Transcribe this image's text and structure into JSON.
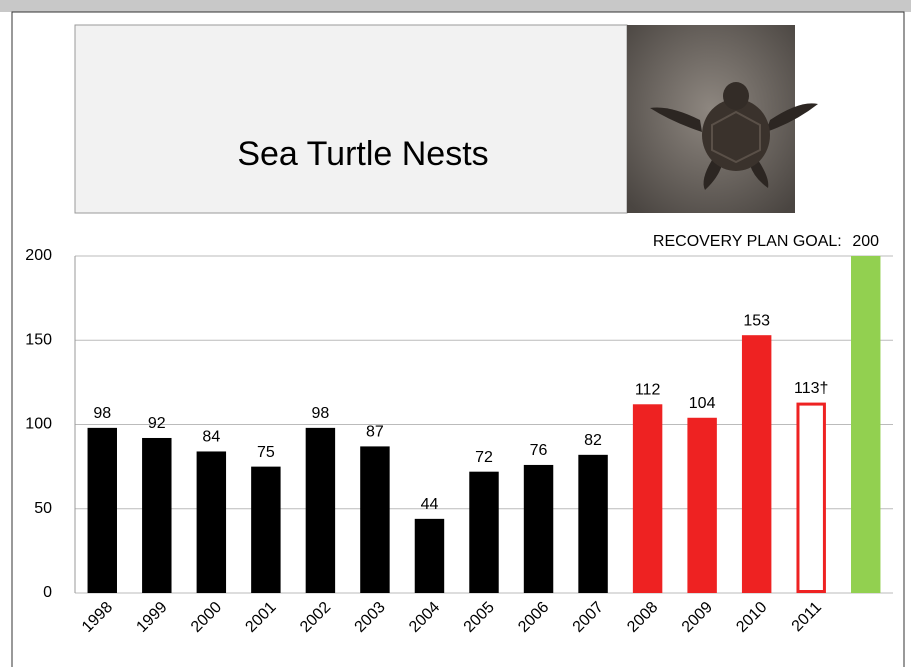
{
  "chart_data": {
    "type": "bar",
    "title": "Sea Turtle Nests",
    "annotation": "RECOVERY PLAN GOAL:",
    "categories": [
      "1998",
      "1999",
      "2000",
      "2001",
      "2002",
      "2003",
      "2004",
      "2005",
      "2006",
      "2007",
      "2008",
      "2009",
      "2010",
      "2011",
      null
    ],
    "values": [
      98,
      92,
      84,
      75,
      98,
      87,
      44,
      72,
      76,
      82,
      112,
      104,
      153,
      113,
      200
    ],
    "value_labels": [
      "98",
      "92",
      "84",
      "75",
      "98",
      "87",
      "44",
      "72",
      "76",
      "82",
      "112",
      "104",
      "153",
      "113†",
      "200"
    ],
    "colors": [
      "#000000",
      "#000000",
      "#000000",
      "#000000",
      "#000000",
      "#000000",
      "#000000",
      "#000000",
      "#000000",
      "#000000",
      "#ee2222",
      "#ee2222",
      "#ee2222",
      "#ee2222",
      "#92d050"
    ],
    "outlined": [
      false,
      false,
      false,
      false,
      false,
      false,
      false,
      false,
      false,
      false,
      false,
      false,
      false,
      true,
      false
    ],
    "ylim": [
      0,
      200
    ],
    "yticks": [
      0,
      50,
      100,
      150,
      200
    ],
    "grid": true
  }
}
